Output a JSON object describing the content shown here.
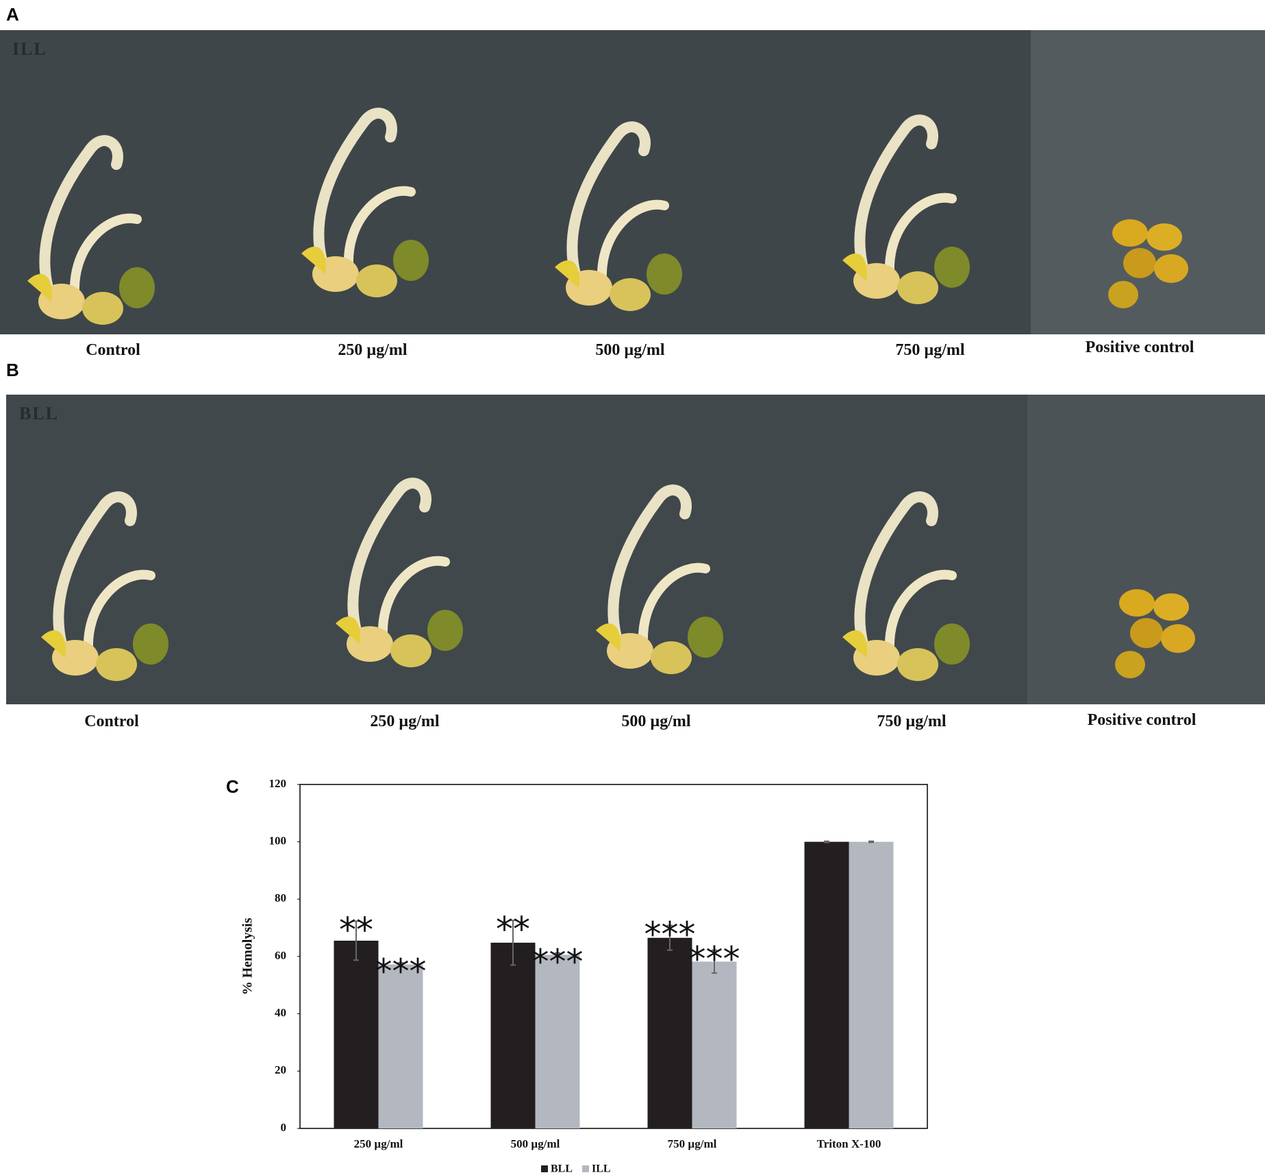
{
  "panels": [
    {
      "label": "A",
      "overlay": "ILL",
      "captions": [
        "Control",
        "250 µg/ml",
        "500 µg/ml",
        "750 µg/ml",
        "Positive control"
      ]
    },
    {
      "label": "B",
      "overlay": "BLL",
      "captions": [
        "Control",
        "250 µg/ml",
        "500 µg/ml",
        "750 µg/ml",
        "Positive control"
      ]
    }
  ],
  "chart_data": {
    "type": "bar",
    "panel_label": "C",
    "y_label": "% Hemolysis",
    "categories": [
      "250 µg/ml",
      "500 µg/ml",
      "750 µg/ml",
      "Triton X-100"
    ],
    "series": [
      {
        "name": "BLL",
        "color": "#231f20",
        "values": [
          65.5,
          64.8,
          66.5,
          100
        ],
        "errors": [
          6.8,
          7.8,
          4.3,
          0.2
        ],
        "annotations": [
          "**",
          "**",
          "***",
          null
        ]
      },
      {
        "name": "ILL",
        "color": "#b3b8c0",
        "values": [
          57.2,
          60.6,
          58.2,
          100
        ],
        "errors": [
          0.6,
          0.6,
          4.0,
          0.2
        ],
        "annotations": [
          "***",
          "***",
          "***",
          null
        ]
      }
    ],
    "ylim": [
      0,
      120
    ],
    "yticks": [
      0,
      20,
      40,
      60,
      80,
      100,
      120
    ],
    "legend": "bottom"
  }
}
